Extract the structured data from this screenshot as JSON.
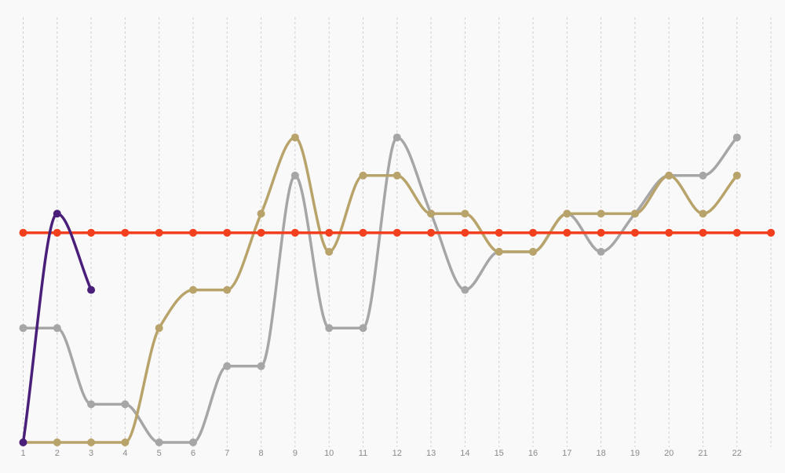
{
  "chart_data": {
    "type": "line",
    "title": "",
    "xlabel": "",
    "ylabel": "",
    "x": [
      1,
      2,
      3,
      4,
      5,
      6,
      7,
      8,
      9,
      10,
      11,
      12,
      13,
      14,
      15,
      16,
      17,
      18,
      19,
      20,
      21,
      22
    ],
    "tick_labels": [
      "1",
      "2",
      "3",
      "4",
      "5",
      "6",
      "7",
      "8",
      "9",
      "10",
      "11",
      "12",
      "13",
      "14",
      "15",
      "16",
      "17",
      "18",
      "19",
      "20",
      "21",
      "22"
    ],
    "ylim": [
      0,
      8
    ],
    "grid": "vertical-dashed",
    "legend": "none",
    "smooth": true,
    "series": [
      {
        "color": "#a6a6a6",
        "values": [
          3,
          3,
          1,
          1,
          0,
          0,
          2,
          2,
          7,
          3,
          3,
          8,
          6,
          4,
          5,
          5,
          6,
          5,
          6,
          7,
          7,
          8
        ]
      },
      {
        "color": "#b8a36a",
        "values": [
          0,
          0,
          0,
          0,
          3,
          4,
          4,
          6,
          8,
          5,
          7,
          7,
          6,
          6,
          5,
          5,
          6,
          6,
          6,
          7,
          6,
          7
        ]
      },
      {
        "color": "#f2401e",
        "values": [
          5.5,
          5.5,
          5.5,
          5.5,
          5.5,
          5.5,
          5.5,
          5.5,
          5.5,
          5.5,
          5.5,
          5.5,
          5.5,
          5.5,
          5.5,
          5.5,
          5.5,
          5.5,
          5.5,
          5.5,
          5.5,
          5.5,
          5.5
        ],
        "x": [
          1,
          2,
          3,
          4,
          5,
          6,
          7,
          8,
          9,
          10,
          11,
          12,
          13,
          14,
          15,
          16,
          17,
          18,
          19,
          20,
          21,
          22,
          23
        ]
      },
      {
        "color": "#4a1f7a",
        "values": [
          0,
          6,
          4
        ],
        "x": [
          1,
          2,
          3
        ]
      }
    ]
  }
}
